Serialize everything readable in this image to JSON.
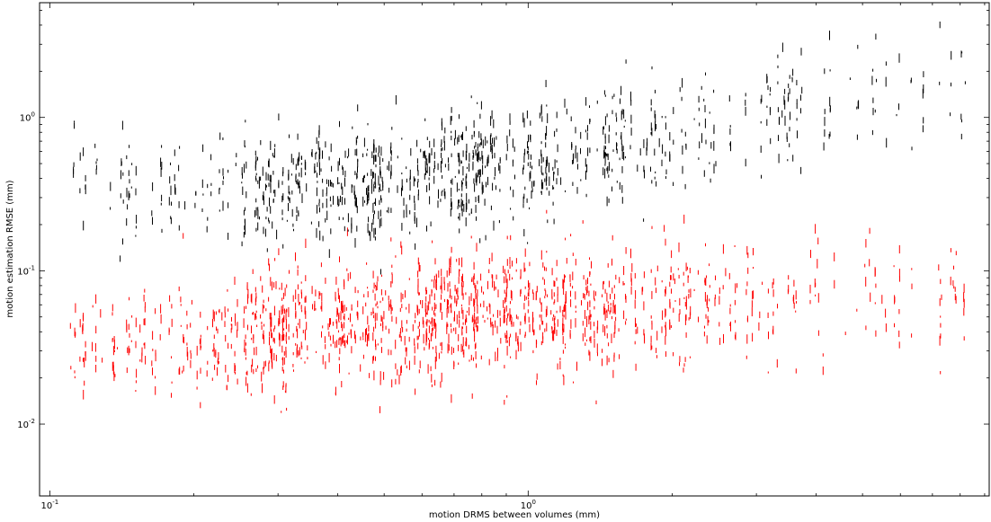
{
  "chart_data": {
    "type": "scatter",
    "title": "",
    "xlabel": "motion DRMS between volumes (mm)",
    "ylabel": "motion estimation RMSE (mm)",
    "xscale": "log",
    "yscale": "log",
    "xlim": [
      0.0952,
      9.2
    ],
    "ylim": [
      0.0034,
      5.6
    ],
    "grid": false,
    "legend": "none",
    "x_ticks": [
      {
        "value": 0.1,
        "base": "10",
        "exp": "-1"
      },
      {
        "value": 1.0,
        "base": "10",
        "exp": "0"
      }
    ],
    "y_ticks": [
      {
        "value": 0.01,
        "base": "10",
        "exp": "-2"
      },
      {
        "value": 0.1,
        "base": "10",
        "exp": "-1"
      },
      {
        "value": 1.0,
        "base": "10",
        "exp": "0"
      }
    ],
    "series": [
      {
        "color": "#000000",
        "marker": "point",
        "description_trend": [
          {
            "x": 0.11,
            "y_median": 0.45
          },
          {
            "x": 0.16,
            "y_median": 0.33
          },
          {
            "x": 0.25,
            "y_median": 0.32
          },
          {
            "x": 0.4,
            "y_median": 0.36
          },
          {
            "x": 0.6,
            "y_median": 0.42
          },
          {
            "x": 1.0,
            "y_median": 0.5
          },
          {
            "x": 1.6,
            "y_median": 0.65
          },
          {
            "x": 2.5,
            "y_median": 0.85
          },
          {
            "x": 4.0,
            "y_median": 1.2
          },
          {
            "x": 8.5,
            "y_median": 1.6
          }
        ]
      },
      {
        "color": "#ff0000",
        "marker": "point",
        "description_trend": [
          {
            "x": 0.11,
            "y_median": 0.035
          },
          {
            "x": 0.16,
            "y_median": 0.035
          },
          {
            "x": 0.25,
            "y_median": 0.04
          },
          {
            "x": 0.4,
            "y_median": 0.045
          },
          {
            "x": 0.6,
            "y_median": 0.05
          },
          {
            "x": 1.0,
            "y_median": 0.055
          },
          {
            "x": 1.6,
            "y_median": 0.06
          },
          {
            "x": 2.5,
            "y_median": 0.06
          },
          {
            "x": 4.0,
            "y_median": 0.06
          },
          {
            "x": 8.5,
            "y_median": 0.07
          }
        ]
      }
    ]
  }
}
